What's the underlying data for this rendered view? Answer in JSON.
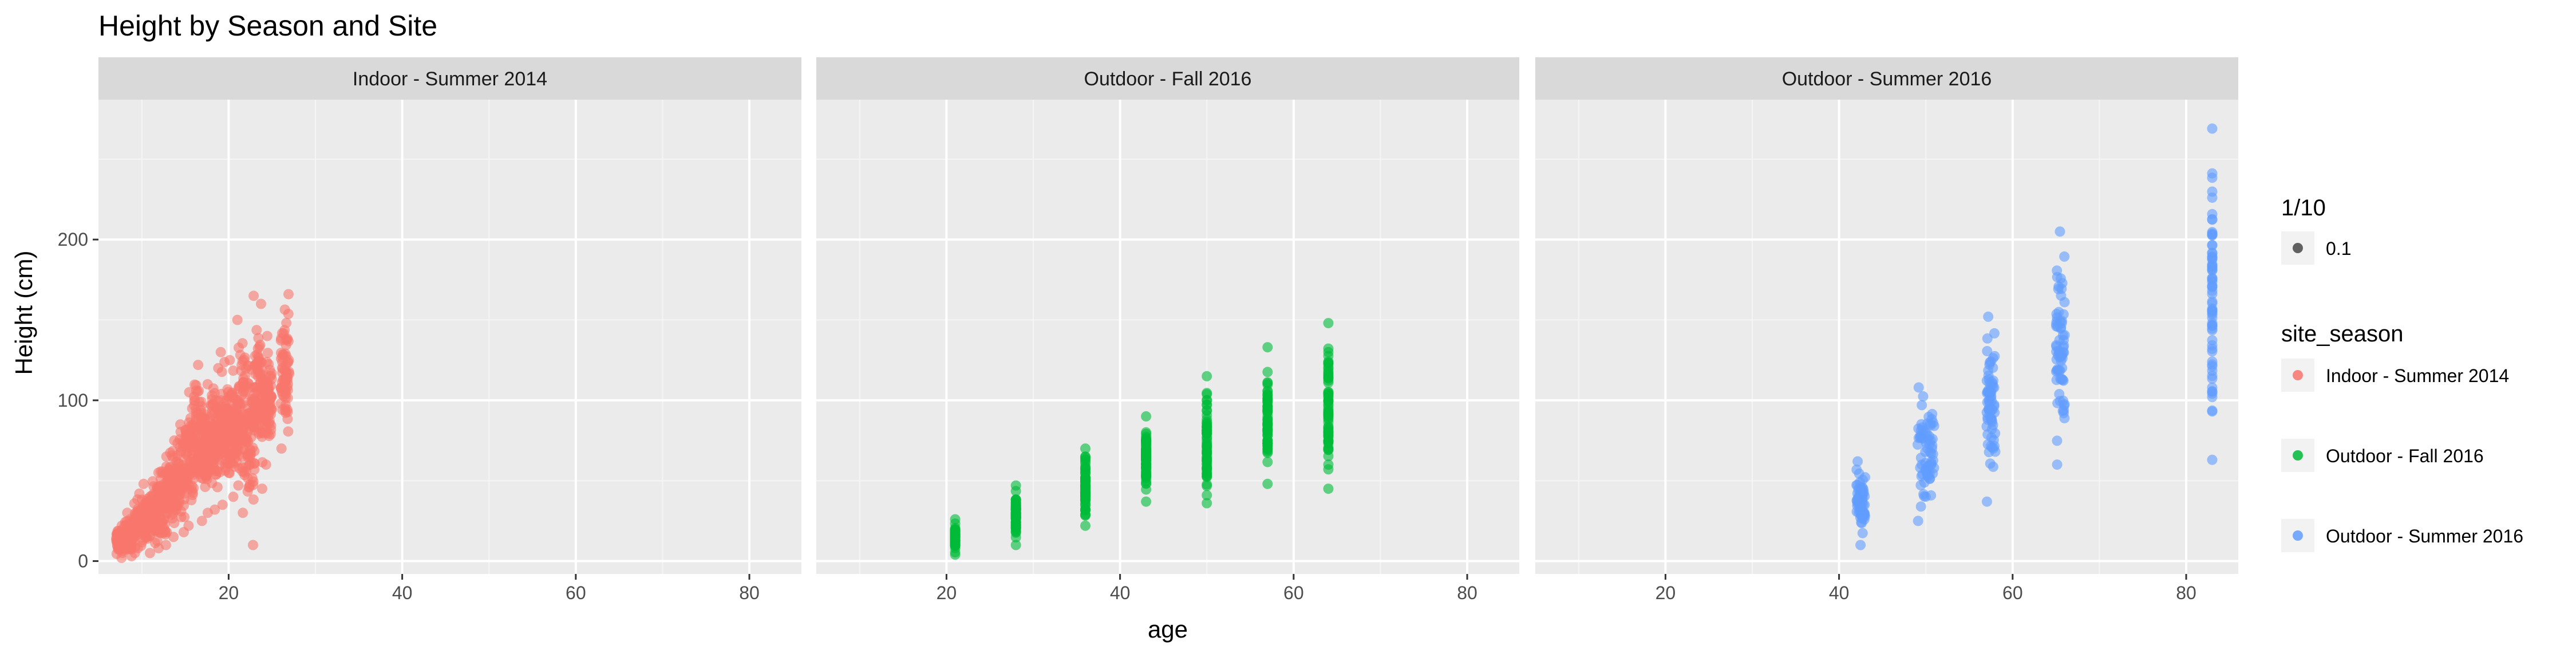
{
  "chart_data": {
    "type": "scatter",
    "title": "Height by Season and Site",
    "xlabel": "age",
    "ylabel": "Height (cm)",
    "xlim": [
      5,
      86
    ],
    "ylim": [
      -8,
      287
    ],
    "x_ticks": [
      20,
      40,
      60,
      80
    ],
    "y_ticks": [
      0,
      100,
      200
    ],
    "grid": true,
    "legend_placement": "right",
    "point_alpha_legend": {
      "title": "1/10",
      "label": "0.1",
      "color": "#000000"
    },
    "color_legend": {
      "title": "site_season",
      "entries": [
        {
          "label": "Indoor  -  Summer 2014",
          "color": "#F8766D"
        },
        {
          "label": "Outdoor  -  Fall 2016",
          "color": "#00BA38"
        },
        {
          "label": "Outdoor  -  Summer 2016",
          "color": "#619CFF"
        }
      ]
    },
    "panels": [
      {
        "label": "Indoor  -  Summer 2014",
        "color": "#F8766D",
        "groups": [
          {
            "x": [
              7,
              8
            ],
            "y": [
              2,
              22
            ]
          },
          {
            "x": [
              8,
              9
            ],
            "y": [
              3,
              30
            ]
          },
          {
            "x": [
              9,
              10
            ],
            "y": [
              5,
              42
            ]
          },
          {
            "x": [
              10,
              11
            ],
            "y": [
              5,
              48
            ]
          },
          {
            "x": [
              11,
              12
            ],
            "y": [
              8,
              55
            ]
          },
          {
            "x": [
              12,
              13
            ],
            "y": [
              10,
              65
            ]
          },
          {
            "x": [
              13,
              14
            ],
            "y": [
              15,
              75
            ]
          },
          {
            "x": [
              14,
              15
            ],
            "y": [
              18,
              85
            ]
          },
          {
            "x": [
              15,
              16
            ],
            "y": [
              22,
              105
            ]
          },
          {
            "x": [
              16,
              17
            ],
            "y": [
              25,
              122
            ]
          },
          {
            "x": [
              17,
              18
            ],
            "y": [
              30,
              110
            ]
          },
          {
            "x": [
              18,
              19
            ],
            "y": [
              32,
              120
            ]
          },
          {
            "x": [
              19,
              20
            ],
            "y": [
              35,
              130
            ]
          },
          {
            "x": [
              20,
              21
            ],
            "y": [
              40,
              125
            ]
          },
          {
            "x": [
              21,
              22
            ],
            "y": [
              30,
              150
            ]
          },
          {
            "x": [
              22,
              23
            ],
            "y": [
              10,
              165
            ]
          },
          {
            "x": [
              23,
              24
            ],
            "y": [
              45,
              160
            ]
          },
          {
            "x": [
              24,
              25
            ],
            "y": [
              60,
              140
            ]
          },
          {
            "x": [
              26,
              27
            ],
            "y": [
              70,
              166
            ]
          }
        ]
      },
      {
        "label": "Outdoor  -  Fall 2016",
        "color": "#00BA38",
        "groups": [
          {
            "x": [
              21,
              21
            ],
            "y": [
              4,
              26
            ]
          },
          {
            "x": [
              28,
              28
            ],
            "y": [
              10,
              47
            ]
          },
          {
            "x": [
              36,
              36
            ],
            "y": [
              22,
              70
            ]
          },
          {
            "x": [
              43,
              43
            ],
            "y": [
              37,
              90
            ]
          },
          {
            "x": [
              50,
              50
            ],
            "y": [
              36,
              115
            ]
          },
          {
            "x": [
              57,
              57
            ],
            "y": [
              48,
              133
            ]
          },
          {
            "x": [
              64,
              64
            ],
            "y": [
              45,
              148
            ]
          }
        ]
      },
      {
        "label": "Outdoor  -  Summer 2016",
        "color": "#619CFF",
        "groups": [
          {
            "x": [
              42,
              43
            ],
            "y": [
              10,
              62
            ]
          },
          {
            "x": [
              49,
              51
            ],
            "y": [
              25,
              108
            ]
          },
          {
            "x": [
              57,
              58
            ],
            "y": [
              37,
              152
            ]
          },
          {
            "x": [
              65,
              66
            ],
            "y": [
              60,
              205
            ]
          },
          {
            "x": [
              83,
              83
            ],
            "y": [
              63,
              269
            ]
          }
        ]
      }
    ]
  }
}
